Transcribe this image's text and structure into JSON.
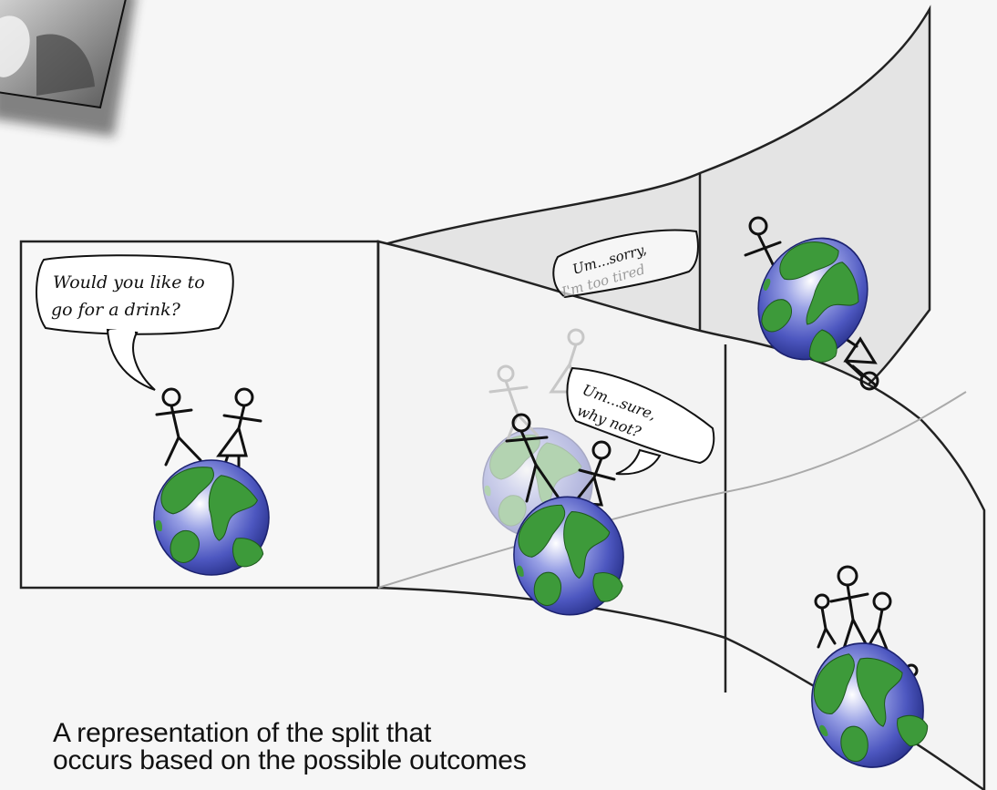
{
  "diagram": {
    "bubbles": {
      "question": [
        "Would you like to",
        "go for a drink?"
      ],
      "declined": [
        "Um...sorry,",
        "I'm too tired"
      ],
      "accepted": [
        "Um...sure,",
        "why not?"
      ]
    },
    "caption": [
      "A representation of the split that",
      "occurs based on the possible outcomes"
    ],
    "colors": {
      "panel_border": "#222222",
      "upper_branch_fill": "#e2e2e2",
      "ocean": "#5a63c4",
      "land": "#3d9a3a",
      "background": "#f6f6f6"
    }
  }
}
